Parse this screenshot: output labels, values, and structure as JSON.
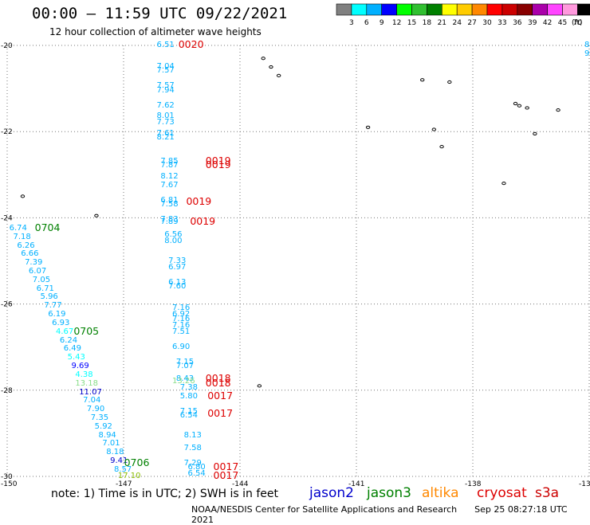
{
  "header": {
    "title": "00:00 – 11:59 UTC 09/22/2021",
    "subtitle": "12 hour collection of altimeter wave heights"
  },
  "colorbar": {
    "unit": "(ft)",
    "ticks": [
      "3",
      "6",
      "9",
      "12",
      "15",
      "18",
      "21",
      "24",
      "27",
      "30",
      "33",
      "36",
      "39",
      "42",
      "45",
      "70"
    ],
    "colors": [
      "#808080",
      "#00ffff",
      "#00b0ff",
      "#0000ff",
      "#00ff00",
      "#30c030",
      "#008000",
      "#ffff00",
      "#ffcc00",
      "#ff8800",
      "#ff0000",
      "#cc0000",
      "#880000",
      "#aa00aa",
      "#ff44ff",
      "#ff99dd",
      "#000000"
    ]
  },
  "axes": {
    "x_ticks": [
      "-150",
      "-147",
      "-144",
      "-141",
      "-138",
      "-13"
    ],
    "y_ticks": [
      "-20",
      "-22",
      "-24",
      "-26",
      "-28",
      "-30"
    ]
  },
  "legend": {
    "note": "note: 1) Time is in UTC; 2) SWH is in feet",
    "sats": [
      {
        "name": "jason2",
        "color": "#0000cc"
      },
      {
        "name": "jason3",
        "color": "#008000"
      },
      {
        "name": "altika",
        "color": "#ff8800"
      },
      {
        "name": "cryosat",
        "color": "#dd0000"
      },
      {
        "name": "s3a",
        "color": "#cc0000"
      }
    ]
  },
  "footer": {
    "credit": "NOAA/NESDIS Center for Satellite Applications and Research",
    "timestamp": "Sep 25 08:27:18 UTC 2021"
  },
  "chart_data": {
    "type": "scatter",
    "title": "00:00 – 11:59 UTC 09/22/2021",
    "subtitle": "12 hour collection of altimeter wave heights",
    "xlim": [
      -150,
      -135
    ],
    "ylim": [
      -30,
      -20
    ],
    "grid": true,
    "points": [
      {
        "lon": -145.9,
        "lat": -20.0,
        "swh": "6.51",
        "c": "#00b0ff"
      },
      {
        "lon": -145.9,
        "lat": -20.5,
        "swh": "7.04",
        "c": "#00b0ff"
      },
      {
        "lon": -145.9,
        "lat": -20.6,
        "swh": "7.57",
        "c": "#00b0ff"
      },
      {
        "lon": -145.9,
        "lat": -20.95,
        "swh": "7.57",
        "c": "#00b0ff"
      },
      {
        "lon": -145.9,
        "lat": -21.05,
        "swh": "7.94",
        "c": "#00b0ff"
      },
      {
        "lon": -145.9,
        "lat": -21.4,
        "swh": "7.62",
        "c": "#00b0ff"
      },
      {
        "lon": -145.9,
        "lat": -21.65,
        "swh": "8.01",
        "c": "#00b0ff"
      },
      {
        "lon": -145.9,
        "lat": -21.8,
        "swh": "7.73",
        "c": "#00b0ff"
      },
      {
        "lon": -145.9,
        "lat": -22.05,
        "swh": "7.61",
        "c": "#00b0ff"
      },
      {
        "lon": -145.9,
        "lat": -22.15,
        "swh": "8.21",
        "c": "#00b0ff"
      },
      {
        "lon": -145.8,
        "lat": -22.7,
        "swh": "7.85",
        "c": "#00b0ff"
      },
      {
        "lon": -145.8,
        "lat": -22.8,
        "swh": "7.87",
        "c": "#00b0ff"
      },
      {
        "lon": -145.8,
        "lat": -23.05,
        "swh": "8.12",
        "c": "#00b0ff"
      },
      {
        "lon": -145.8,
        "lat": -23.25,
        "swh": "7.67",
        "c": "#00b0ff"
      },
      {
        "lon": -145.8,
        "lat": -23.6,
        "swh": "6.81",
        "c": "#00b0ff"
      },
      {
        "lon": -145.8,
        "lat": -23.7,
        "swh": "7.58",
        "c": "#00b0ff"
      },
      {
        "lon": -145.8,
        "lat": -24.05,
        "swh": "7.83",
        "c": "#00b0ff"
      },
      {
        "lon": -145.8,
        "lat": -24.1,
        "swh": "7.89",
        "c": "#00b0ff"
      },
      {
        "lon": -145.7,
        "lat": -24.4,
        "swh": "6.56",
        "c": "#00b0ff"
      },
      {
        "lon": -145.7,
        "lat": -24.55,
        "swh": "8.00",
        "c": "#00b0ff"
      },
      {
        "lon": -145.6,
        "lat": -25.0,
        "swh": "7.33",
        "c": "#00b0ff"
      },
      {
        "lon": -145.6,
        "lat": -25.15,
        "swh": "6.97",
        "c": "#00b0ff"
      },
      {
        "lon": -145.6,
        "lat": -25.5,
        "swh": "6.13",
        "c": "#00b0ff"
      },
      {
        "lon": -145.6,
        "lat": -25.6,
        "swh": "7.60",
        "c": "#00b0ff"
      },
      {
        "lon": -145.5,
        "lat": -26.1,
        "swh": "7.16",
        "c": "#00b0ff"
      },
      {
        "lon": -145.5,
        "lat": -26.25,
        "swh": "6.92",
        "c": "#00b0ff"
      },
      {
        "lon": -145.5,
        "lat": -26.35,
        "swh": "7.16",
        "c": "#00b0ff"
      },
      {
        "lon": -145.5,
        "lat": -26.5,
        "swh": "7.16",
        "c": "#00b0ff"
      },
      {
        "lon": -145.5,
        "lat": -26.65,
        "swh": "7.51",
        "c": "#00b0ff"
      },
      {
        "lon": -145.5,
        "lat": -27.0,
        "swh": "6.90",
        "c": "#00b0ff"
      },
      {
        "lon": -145.4,
        "lat": -27.35,
        "swh": "7.15",
        "c": "#00b0ff"
      },
      {
        "lon": -145.4,
        "lat": -27.45,
        "swh": "7.07",
        "c": "#00b0ff"
      },
      {
        "lon": -145.4,
        "lat": -27.75,
        "swh": "8.43",
        "c": "#00b0ff"
      },
      {
        "lon": -145.5,
        "lat": -27.8,
        "swh": "13.26",
        "c": "#88dd88"
      },
      {
        "lon": -145.3,
        "lat": -27.95,
        "swh": "7.38",
        "c": "#00b0ff"
      },
      {
        "lon": -145.3,
        "lat": -28.15,
        "swh": "5.80",
        "c": "#00b0ff"
      },
      {
        "lon": -145.3,
        "lat": -28.5,
        "swh": "7.15",
        "c": "#00b0ff"
      },
      {
        "lon": -145.3,
        "lat": -28.6,
        "swh": "6.54",
        "c": "#00b0ff"
      },
      {
        "lon": -145.2,
        "lat": -29.05,
        "swh": "8.13",
        "c": "#00b0ff"
      },
      {
        "lon": -145.2,
        "lat": -29.35,
        "swh": "7.58",
        "c": "#00b0ff"
      },
      {
        "lon": -145.2,
        "lat": -29.7,
        "swh": "7.29",
        "c": "#00b0ff"
      },
      {
        "lon": -145.1,
        "lat": -29.8,
        "swh": "6.80",
        "c": "#00b0ff"
      },
      {
        "lon": -145.1,
        "lat": -29.95,
        "swh": "6.54",
        "c": "#00b0ff"
      },
      {
        "lon": -149.7,
        "lat": -24.25,
        "swh": "6.74",
        "c": "#00b0ff"
      },
      {
        "lon": -149.6,
        "lat": -24.45,
        "swh": "7.18",
        "c": "#00b0ff"
      },
      {
        "lon": -149.5,
        "lat": -24.65,
        "swh": "6.26",
        "c": "#00b0ff"
      },
      {
        "lon": -149.4,
        "lat": -24.85,
        "swh": "6.66",
        "c": "#00b0ff"
      },
      {
        "lon": -149.3,
        "lat": -25.05,
        "swh": "7.39",
        "c": "#00b0ff"
      },
      {
        "lon": -149.2,
        "lat": -25.25,
        "swh": "6.07",
        "c": "#00b0ff"
      },
      {
        "lon": -149.1,
        "lat": -25.45,
        "swh": "7.05",
        "c": "#00b0ff"
      },
      {
        "lon": -149.0,
        "lat": -25.65,
        "swh": "6.71",
        "c": "#00b0ff"
      },
      {
        "lon": -148.9,
        "lat": -25.85,
        "swh": "5.96",
        "c": "#00b0ff"
      },
      {
        "lon": -148.8,
        "lat": -26.05,
        "swh": "7.77",
        "c": "#00b0ff"
      },
      {
        "lon": -148.7,
        "lat": -26.25,
        "swh": "6.19",
        "c": "#00b0ff"
      },
      {
        "lon": -148.6,
        "lat": -26.45,
        "swh": "6.93",
        "c": "#00b0ff"
      },
      {
        "lon": -148.5,
        "lat": -26.65,
        "swh": "4.67",
        "c": "#00ffff"
      },
      {
        "lon": -148.4,
        "lat": -26.85,
        "swh": "6.24",
        "c": "#00b0ff"
      },
      {
        "lon": -148.3,
        "lat": -27.05,
        "swh": "6.49",
        "c": "#00b0ff"
      },
      {
        "lon": -148.2,
        "lat": -27.25,
        "swh": "5.43",
        "c": "#00ffff"
      },
      {
        "lon": -148.1,
        "lat": -27.45,
        "swh": "9.69",
        "c": "#0000ff"
      },
      {
        "lon": -148.0,
        "lat": -27.65,
        "swh": "4.38",
        "c": "#00ffff"
      },
      {
        "lon": -148.0,
        "lat": -27.85,
        "swh": "13.18",
        "c": "#88dd88"
      },
      {
        "lon": -147.9,
        "lat": -28.05,
        "swh": "11.07",
        "c": "#0000cc"
      },
      {
        "lon": -147.8,
        "lat": -28.25,
        "swh": "7.04",
        "c": "#00b0ff"
      },
      {
        "lon": -147.7,
        "lat": -28.45,
        "swh": "7.90",
        "c": "#00b0ff"
      },
      {
        "lon": -147.6,
        "lat": -28.65,
        "swh": "7.35",
        "c": "#00b0ff"
      },
      {
        "lon": -147.5,
        "lat": -28.85,
        "swh": "5.92",
        "c": "#00b0ff"
      },
      {
        "lon": -147.4,
        "lat": -29.05,
        "swh": "8.94",
        "c": "#00b0ff"
      },
      {
        "lon": -147.3,
        "lat": -29.25,
        "swh": "7.01",
        "c": "#00b0ff"
      },
      {
        "lon": -147.2,
        "lat": -29.45,
        "swh": "8.18",
        "c": "#00b0ff"
      },
      {
        "lon": -147.1,
        "lat": -29.65,
        "swh": "9.41",
        "c": "#0000cc"
      },
      {
        "lon": -147.0,
        "lat": -29.85,
        "swh": "8.57",
        "c": "#00b0ff"
      },
      {
        "lon": -146.9,
        "lat": -30.0,
        "swh": "17.10",
        "c": "#88bb00"
      }
    ],
    "passes": [
      {
        "lon": -145.3,
        "lat": -20.0,
        "time": "0020",
        "c": "#dd0000"
      },
      {
        "lon": -144.6,
        "lat": -22.7,
        "time": "0019",
        "c": "#dd0000"
      },
      {
        "lon": -144.6,
        "lat": -22.8,
        "time": "0019",
        "c": "#dd0000"
      },
      {
        "lon": -145.1,
        "lat": -23.65,
        "time": "0019",
        "c": "#dd0000"
      },
      {
        "lon": -145.0,
        "lat": -24.1,
        "time": "0019",
        "c": "#dd0000"
      },
      {
        "lon": -144.6,
        "lat": -27.75,
        "time": "0018",
        "c": "#dd0000"
      },
      {
        "lon": -144.6,
        "lat": -27.85,
        "time": "0018",
        "c": "#dd0000"
      },
      {
        "lon": -144.55,
        "lat": -28.15,
        "time": "0017",
        "c": "#dd0000"
      },
      {
        "lon": -144.55,
        "lat": -28.55,
        "time": "0017",
        "c": "#dd0000"
      },
      {
        "lon": -144.4,
        "lat": -29.8,
        "time": "0017",
        "c": "#dd0000"
      },
      {
        "lon": -144.4,
        "lat": -30.0,
        "time": "0017",
        "c": "#dd0000"
      },
      {
        "lon": -149.0,
        "lat": -24.25,
        "time": "0704",
        "c": "#008000"
      },
      {
        "lon": -148.0,
        "lat": -26.65,
        "time": "0705",
        "c": "#008000"
      },
      {
        "lon": -146.7,
        "lat": -29.7,
        "time": "0706",
        "c": "#008000"
      }
    ],
    "edge_labels": [
      {
        "lon": -135.0,
        "lat": -20.0,
        "text": "8",
        "c": "#00b0ff"
      },
      {
        "lon": -135.0,
        "lat": -20.2,
        "text": "9",
        "c": "#00b0ff"
      }
    ],
    "islands": [
      {
        "lon": -143.4,
        "lat": -20.3
      },
      {
        "lon": -143.2,
        "lat": -20.5
      },
      {
        "lon": -143.0,
        "lat": -20.7
      },
      {
        "lon": -139.3,
        "lat": -20.8
      },
      {
        "lon": -138.6,
        "lat": -20.85
      },
      {
        "lon": -140.7,
        "lat": -21.9
      },
      {
        "lon": -139.0,
        "lat": -21.95
      },
      {
        "lon": -138.8,
        "lat": -22.35
      },
      {
        "lon": -136.9,
        "lat": -21.35
      },
      {
        "lon": -136.8,
        "lat": -21.4
      },
      {
        "lon": -136.6,
        "lat": -21.45
      },
      {
        "lon": -135.8,
        "lat": -21.5
      },
      {
        "lon": -136.4,
        "lat": -22.05
      },
      {
        "lon": -137.2,
        "lat": -23.2
      },
      {
        "lon": -149.6,
        "lat": -23.5
      },
      {
        "lon": -147.7,
        "lat": -23.95
      },
      {
        "lon": -143.5,
        "lat": -27.9
      }
    ]
  }
}
